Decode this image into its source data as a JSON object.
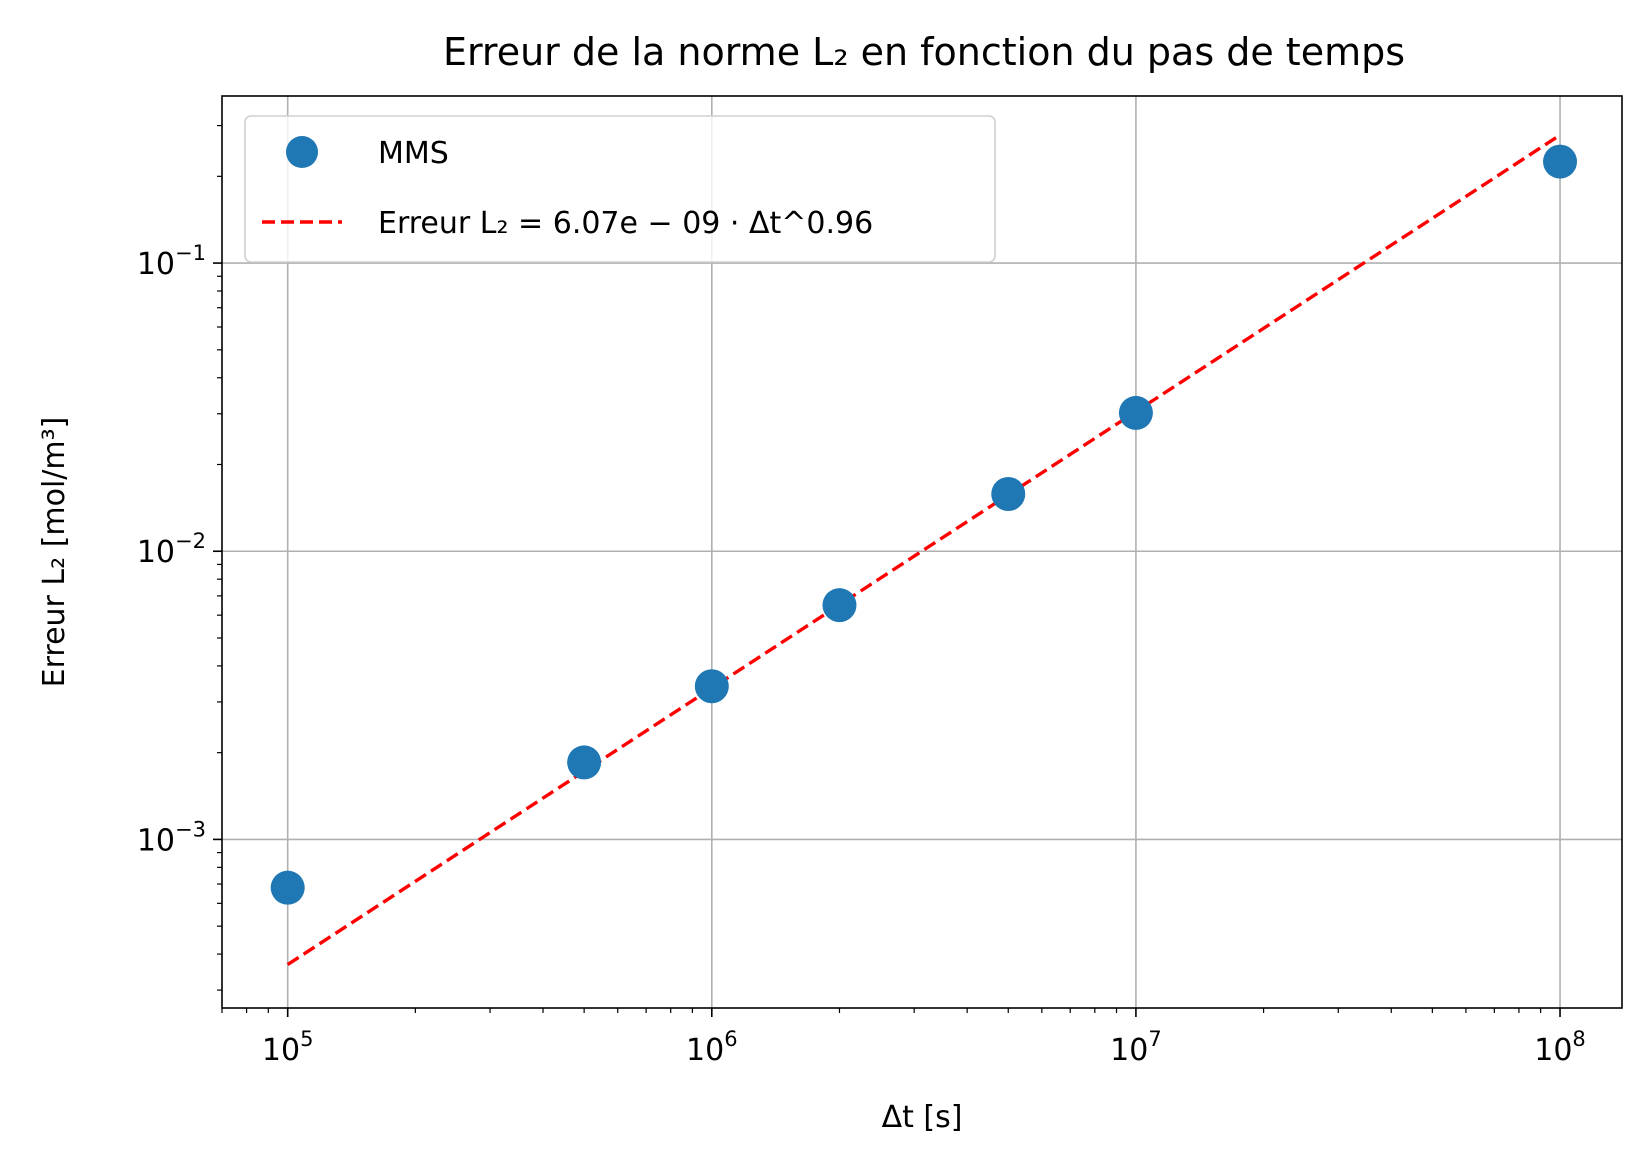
{
  "chart_data": {
    "type": "scatter",
    "title": "Erreur de la norme L₂ en fonction du pas de temps",
    "xlabel": "Δt [s]",
    "ylabel": "Erreur L₂ [mol/m³]",
    "x_scale": "log",
    "y_scale": "log",
    "xlim": [
      70000,
      140000000
    ],
    "ylim": [
      0.00026,
      0.38
    ],
    "x_ticks": [
      {
        "value": 100000,
        "base": "10",
        "exp": "5"
      },
      {
        "value": 1000000,
        "base": "10",
        "exp": "6"
      },
      {
        "value": 10000000,
        "base": "10",
        "exp": "7"
      },
      {
        "value": 100000000,
        "base": "10",
        "exp": "8"
      }
    ],
    "y_ticks": [
      {
        "value": 0.001,
        "base": "10",
        "exp": "−3"
      },
      {
        "value": 0.01,
        "base": "10",
        "exp": "−2"
      },
      {
        "value": 0.1,
        "base": "10",
        "exp": "−1"
      }
    ],
    "grid": true,
    "legend": "top-left",
    "series": [
      {
        "name": "MMS",
        "kind": "markers",
        "color": "#1f77b4",
        "x": [
          100000,
          500000,
          1000000,
          2000000,
          5000000,
          10000000,
          100000000
        ],
        "y": [
          0.00068,
          0.00185,
          0.0034,
          0.0065,
          0.0158,
          0.0302,
          0.225
        ]
      },
      {
        "name": "Erreur L₂ = 6.07e − 09 · Δt^0.96",
        "kind": "dashed-line",
        "color": "#ff0000",
        "x": [
          100000,
          100000000
        ],
        "y": [
          0.000368,
          0.278
        ]
      }
    ]
  }
}
